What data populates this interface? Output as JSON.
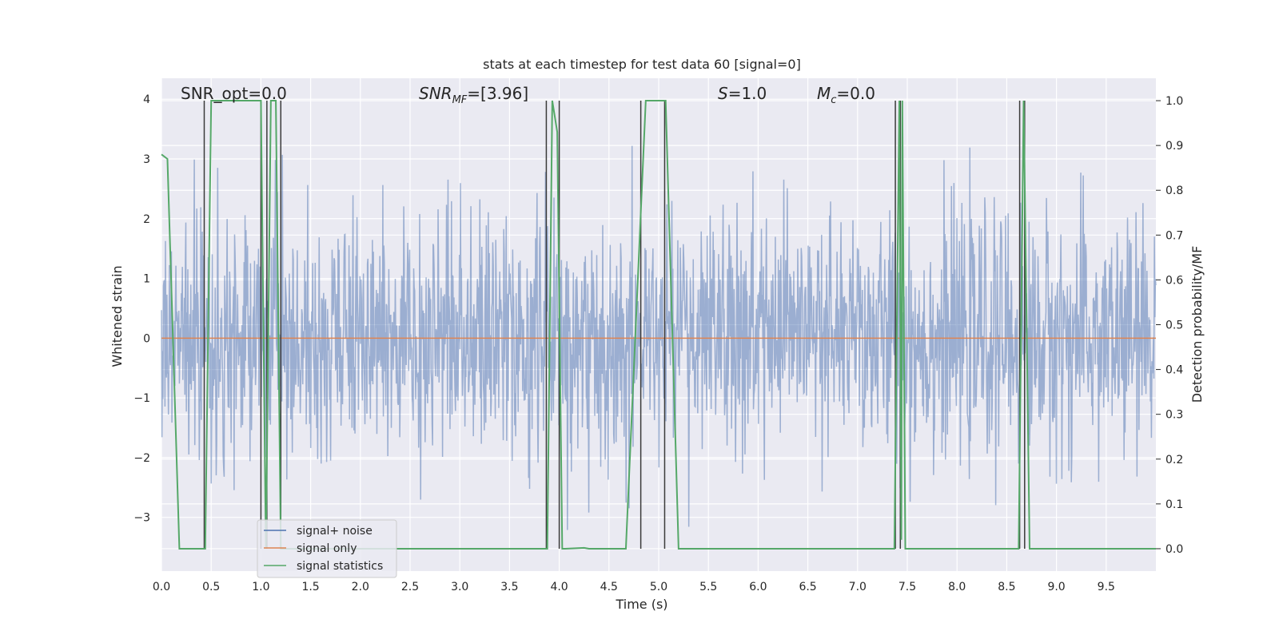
{
  "chart_data": {
    "type": "line",
    "title": "stats at each timestep for test data 60 [signal=0]",
    "xlabel": "Time (s)",
    "ylabel_left": "Whitened strain",
    "ylabel_right": "Detection probability/MF",
    "xlim": [
      0.0,
      10.0
    ],
    "ylim_left": [
      -3.9,
      4.35
    ],
    "ylim_right": [
      -0.05,
      1.05
    ],
    "x_ticks": [
      "0.0",
      "0.5",
      "1.0",
      "1.5",
      "2.0",
      "2.5",
      "3.0",
      "3.5",
      "4.0",
      "4.5",
      "5.0",
      "5.5",
      "6.0",
      "6.5",
      "7.0",
      "7.5",
      "8.0",
      "8.5",
      "9.0",
      "9.5"
    ],
    "y_left_ticks": [
      "4",
      "3",
      "2",
      "1",
      "0",
      "−1",
      "−2",
      "−3"
    ],
    "y_right_ticks": [
      "1.0",
      "0.9",
      "0.8",
      "0.7",
      "0.6",
      "0.5",
      "0.4",
      "0.3",
      "0.2",
      "0.1",
      "0.0"
    ],
    "annotations": {
      "snr_opt": "SNR_opt=0.0",
      "snr_mf_main": "SNR",
      "snr_mf_sub": "MF",
      "snr_mf_value": "=[3.96]",
      "s_symbol": "S",
      "s_value": "=1.0",
      "mc_symbol": "M",
      "mc_sub": "c",
      "mc_value": "=0.0"
    },
    "legend": {
      "placement": "lower-left",
      "entries": [
        {
          "label": "signal+ noise",
          "color": "#4c72b0"
        },
        {
          "label": "signal only",
          "color": "#dd8452"
        },
        {
          "label": "signal statistics",
          "color": "#55a868"
        }
      ]
    },
    "series": [
      {
        "name": "signal+ noise",
        "color": "#4c72b0",
        "style": "noise",
        "mean": 0.0,
        "std": 1.0,
        "max": 4.0,
        "min": -3.3,
        "n_points": 2000
      },
      {
        "name": "signal only",
        "color": "#dd8452",
        "x": [
          0.0,
          10.0
        ],
        "y": [
          0.0,
          0.0
        ]
      },
      {
        "name": "signal statistics",
        "color": "#55a868",
        "x": [
          0.0,
          0.06,
          0.18,
          0.44,
          0.5,
          1.0,
          1.05,
          1.1,
          1.15,
          1.2,
          1.25,
          3.88,
          3.93,
          3.98,
          4.03,
          4.06,
          4.25,
          4.3,
          4.67,
          4.87,
          5.07,
          5.2,
          5.4,
          7.37,
          7.42,
          7.44,
          7.45,
          7.48,
          8.62,
          8.67,
          8.73,
          10.0
        ],
        "y": [
          0.88,
          0.87,
          0.0,
          0.0,
          1.0,
          1.0,
          0.0,
          1.0,
          1.0,
          0.0,
          0.0,
          0.0,
          1.0,
          0.93,
          0.0,
          0.0,
          0.002,
          0.0,
          0.0,
          1.0,
          1.0,
          0.0,
          0.0,
          0.0,
          1.0,
          0.02,
          1.0,
          0.0,
          0.0,
          1.0,
          0.0,
          0.0
        ]
      }
    ],
    "vertical_markers": [
      0.43,
      1.0,
      1.06,
      1.2,
      3.87,
      4.0,
      4.82,
      5.06,
      7.38,
      7.43,
      8.63,
      8.68
    ],
    "vertical_marker_color": "#3a3a3a",
    "background_color": "#eaeaf2",
    "grid": true
  }
}
